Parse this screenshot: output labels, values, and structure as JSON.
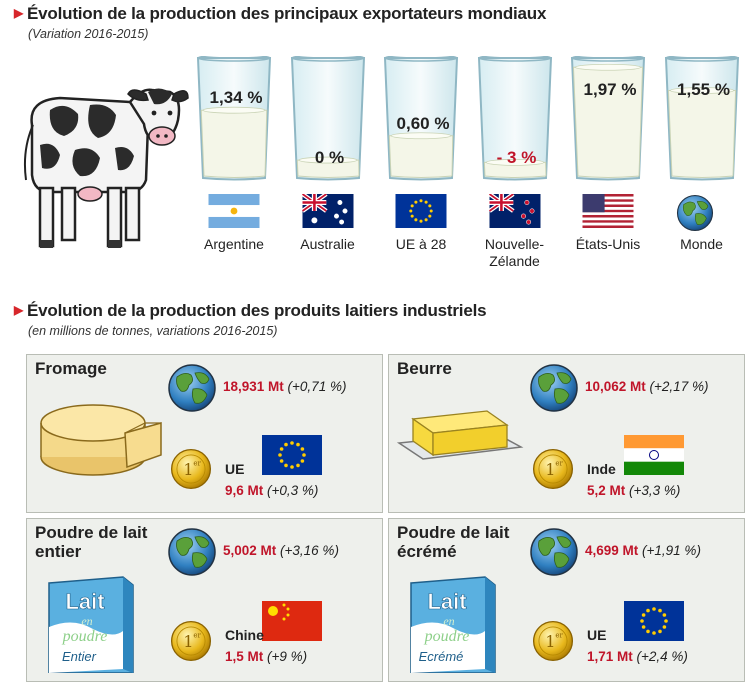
{
  "section1": {
    "title": "Évolution de la production des principaux exportateurs mondiaux",
    "subtitle": "(Variation 2016-2015)"
  },
  "chart_data": [
    {
      "type": "bar",
      "title": "Évolution de la production des principaux exportateurs mondiaux",
      "subtitle": "(Variation 2016-2015)",
      "categories": [
        "Argentine",
        "Australie",
        "UE à 28",
        "Nouvelle-Zélande",
        "États-Unis",
        "Monde"
      ],
      "values": [
        1.34,
        0,
        0.6,
        -3,
        1.97,
        1.55
      ],
      "labels": [
        "1,34 %",
        "0 %",
        "0,60 %",
        "- 3 %",
        "1,97 %",
        "1,55 %"
      ],
      "country_lines": [
        [
          "Argentine"
        ],
        [
          "Australie"
        ],
        [
          "UE à 28"
        ],
        [
          "Nouvelle-",
          "Zélande"
        ],
        [
          "États-Unis"
        ],
        [
          "Monde"
        ]
      ],
      "fill_levels": [
        0.55,
        0.12,
        0.33,
        0.1,
        0.92,
        0.72
      ],
      "flags": [
        "argentina-flag-icon",
        "australia-flag-icon",
        "eu-flag-icon",
        "new-zealand-flag-icon",
        "usa-flag-icon",
        "globe-icon"
      ]
    },
    {
      "type": "table",
      "title": "Évolution de la production des produits laitiers industriels",
      "subtitle": "(en millions de tonnes, variations 2016-2015)",
      "products": [
        {
          "name_lines": [
            "Fromage"
          ],
          "world_mt": "18,931 Mt",
          "world_pct": "(+0,71 %)",
          "leader": "UE",
          "leader_mt": "9,6 Mt",
          "leader_pct": "(+0,3 %)"
        },
        {
          "name_lines": [
            "Beurre"
          ],
          "world_mt": "10,062 Mt",
          "world_pct": "(+2,17 %)",
          "leader": "Inde",
          "leader_mt": "5,2 Mt",
          "leader_pct": "(+3,3 %)"
        },
        {
          "name_lines": [
            "Poudre de lait",
            "entier"
          ],
          "world_mt": "5,002 Mt",
          "world_pct": "(+3,16 %)",
          "leader": "Chine",
          "leader_mt": "1,5 Mt",
          "leader_pct": "(+9 %)"
        },
        {
          "name_lines": [
            "Poudre de lait",
            "écrémé"
          ],
          "world_mt": "4,699 Mt",
          "world_pct": "(+1,91 %)",
          "leader": "UE",
          "leader_mt": "1,71 Mt",
          "leader_pct": "(+2,4 %)"
        }
      ]
    }
  ],
  "section2": {
    "title": "Évolution de la production des produits laitiers industriels",
    "subtitle": "(en millions de tonnes, variations 2016-2015)"
  },
  "medal_text": "1er",
  "box_labels": {
    "lait": "Lait",
    "en": "en",
    "poudre": "poudre",
    "entier": "Entier",
    "ecreme": "Ecrémé"
  },
  "colors": {
    "accent_red": "#c0152a",
    "milk": "#f4f6e8",
    "glass_outline": "#8fb7c4",
    "box_bg": "#eef0ec"
  }
}
